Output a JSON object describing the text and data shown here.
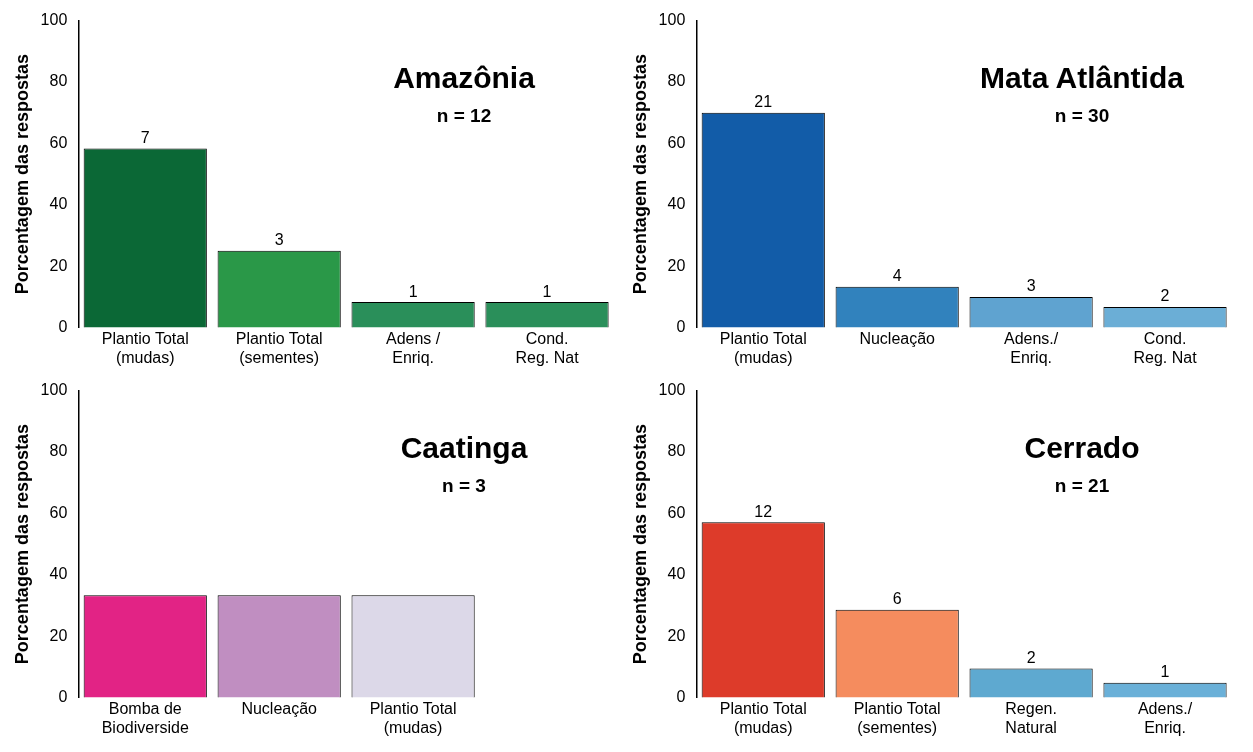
{
  "chart_data": [
    {
      "type": "bar",
      "title": "Amazônia",
      "subtitle": "n = 12",
      "ylabel": "Porcentagem das respostas",
      "categories": [
        "Plantio Total\n(mudas)",
        "Plantio Total\n(sementes)",
        "Adens /\nEnriq.",
        "Cond.\nReg. Nat"
      ],
      "values": [
        58.3,
        25,
        8.3,
        8.3
      ],
      "colors": [
        "#0b6836",
        "#2a9848",
        "#2a8f5a",
        "#2a8f5a"
      ],
      "annotations": [
        {
          "text": "7",
          "x": "Plantio Total\n(mudas)",
          "y": 58.3
        },
        {
          "text": "3",
          "x": "Plantio Total\n(sementes)",
          "y": 25
        },
        {
          "text": "1",
          "x": "Adens /\nEnriq.",
          "y": 8.3
        },
        {
          "text": "1",
          "x": "Cond.\nReg. Nat",
          "y": 8.3
        }
      ],
      "ylim": [
        0,
        100
      ],
      "yticks": [
        0,
        20,
        40,
        60,
        80,
        100
      ],
      "grid": false,
      "legend": false
    },
    {
      "type": "bar",
      "title": "Mata Atlântida",
      "subtitle": "n = 30",
      "ylabel": "Porcentagem das respostas",
      "categories": [
        "Plantio Total\n(mudas)",
        "Nucleação",
        "Adens./\nEnriq.",
        "Cond.\nReg. Nat"
      ],
      "values": [
        70,
        13.3,
        10,
        6.7
      ],
      "colors": [
        "#125ca8",
        "#3182bd",
        "#5fa3d0",
        "#6baed6"
      ],
      "annotations": [
        {
          "text": "21",
          "x": "Plantio Total\n(mudas)",
          "y": 70
        },
        {
          "text": "4",
          "x": "Nucleação",
          "y": 13.3
        },
        {
          "text": "3",
          "x": "Adens./\nEnriq.",
          "y": 10
        },
        {
          "text": "2",
          "x": "Cond.\nReg. Nat",
          "y": 6.7
        }
      ],
      "ylim": [
        0,
        100
      ],
      "yticks": [
        0,
        20,
        40,
        60,
        80,
        100
      ],
      "grid": false,
      "legend": false
    },
    {
      "type": "bar",
      "title": "Caatinga",
      "subtitle": "n = 3",
      "ylabel": "Porcentagem das respostas",
      "categories": [
        "Bomba de\nBiodiverside",
        "Nucleação",
        "Plantio Total\n(mudas)",
        null
      ],
      "values": [
        33.3,
        33.3,
        33.3,
        null
      ],
      "colors": [
        "#e22385",
        "#c08ec1",
        "#dcd8e8",
        "#ffffff"
      ],
      "ylim": [
        0,
        100
      ],
      "yticks": [
        0,
        20,
        40,
        60,
        80,
        100
      ],
      "grid": false,
      "legend": false
    },
    {
      "type": "bar",
      "title": "Cerrado",
      "subtitle": "n = 21",
      "ylabel": "Porcentagem das respostas",
      "categories": [
        "Plantio Total\n(mudas)",
        "Plantio Total\n(sementes)",
        "Regen.\nNatural",
        "Adens./\nEnriq."
      ],
      "values": [
        57.1,
        28.6,
        9.5,
        4.8
      ],
      "colors": [
        "#dd3b2a",
        "#f58c5e",
        "#5ea9d0",
        "#6ab0d8"
      ],
      "annotations": [
        {
          "text": "12",
          "x": "Plantio Total\n(mudas)",
          "y": 57.1
        },
        {
          "text": "6",
          "x": "Plantio Total\n(sementes)",
          "y": 28.6
        },
        {
          "text": "2",
          "x": "Regen.\nNatural",
          "y": 9.5
        },
        {
          "text": "1",
          "x": "Adens./\nEnriq.",
          "y": 4.8
        }
      ],
      "ylim": [
        0,
        100
      ],
      "yticks": [
        0,
        20,
        40,
        60,
        80,
        100
      ],
      "grid": false,
      "legend": false
    }
  ]
}
